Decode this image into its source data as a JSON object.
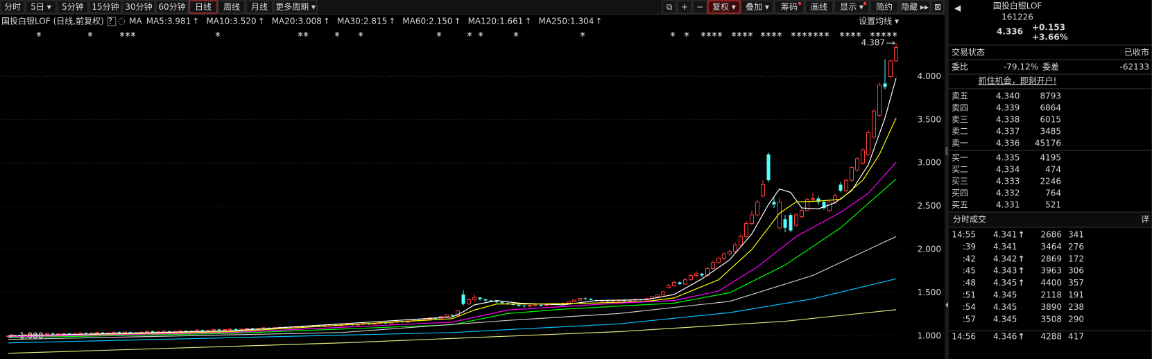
{
  "toolbar": {
    "periods": [
      "分时",
      "5日 ▾",
      "5分钟",
      "15分钟",
      "30分钟",
      "60分钟",
      "日线",
      "周线",
      "月线",
      "更多周期 ▾"
    ],
    "active_period": 6,
    "tools": [
      "⧉",
      "+",
      "−",
      "复权 ▾",
      "叠加 ▾",
      "筹码",
      "画线",
      "显示 ▾",
      "简约",
      "隐藏 ▸▸",
      "⊠"
    ],
    "active_tool": 3,
    "dot_tools": [
      5,
      7
    ]
  },
  "chart_data": {
    "type": "candlestick",
    "title": "国投白银LOF",
    "subtitle": "(日线,前复权)",
    "help": "?",
    "ma_label": "MA",
    "settings_label": "设置均线 ▾",
    "up_color": "#ff3c3c",
    "down_color": "#54ffff",
    "grid": true,
    "ylim": [
      0.75,
      4.5
    ],
    "yticks": [
      {
        "value": 1,
        "label": "1.000"
      },
      {
        "value": 1.5,
        "label": "1.500"
      },
      {
        "value": 2,
        "label": "2.000"
      },
      {
        "value": 2.5,
        "label": "2.500"
      },
      {
        "value": 3,
        "label": "3.000"
      },
      {
        "value": 3.5,
        "label": "3.500"
      },
      {
        "value": 4,
        "label": "4.000"
      }
    ],
    "high_mark": 4.387,
    "low_mark": {
      "value": 1,
      "label": "1.000"
    },
    "ohlc": [
      [
        1.0,
        1.01,
        1.0,
        1.0
      ],
      [
        1.0,
        1.015,
        1.0,
        1.01
      ],
      [
        1.01,
        1.015,
        1.0,
        1.005
      ],
      [
        1.005,
        1.02,
        1.0,
        1.015
      ],
      [
        1.015,
        1.025,
        1.01,
        1.02
      ],
      [
        1.02,
        1.025,
        1.005,
        1.01
      ],
      [
        1.01,
        1.025,
        1.005,
        1.02
      ],
      [
        1.02,
        1.035,
        1.015,
        1.03
      ],
      [
        1.03,
        1.035,
        1.015,
        1.02
      ],
      [
        1.02,
        1.03,
        1.015,
        1.025
      ],
      [
        1.025,
        1.035,
        1.02,
        1.03
      ],
      [
        1.03,
        1.035,
        1.015,
        1.02
      ],
      [
        1.02,
        1.035,
        1.015,
        1.03
      ],
      [
        1.03,
        1.04,
        1.025,
        1.035
      ],
      [
        1.035,
        1.04,
        1.02,
        1.025
      ],
      [
        1.025,
        1.04,
        1.02,
        1.035
      ],
      [
        1.035,
        1.045,
        1.03,
        1.04
      ],
      [
        1.04,
        1.045,
        1.025,
        1.03
      ],
      [
        1.03,
        1.04,
        1.025,
        1.035
      ],
      [
        1.035,
        1.05,
        1.03,
        1.045
      ],
      [
        1.045,
        1.05,
        1.03,
        1.035
      ],
      [
        1.035,
        1.05,
        1.03,
        1.045
      ],
      [
        1.045,
        1.05,
        1.035,
        1.04
      ],
      [
        1.04,
        1.045,
        1.03,
        1.035
      ],
      [
        1.035,
        1.05,
        1.03,
        1.045
      ],
      [
        1.045,
        1.06,
        1.04,
        1.055
      ],
      [
        1.055,
        1.06,
        1.04,
        1.045
      ],
      [
        1.045,
        1.055,
        1.04,
        1.05
      ],
      [
        1.05,
        1.06,
        1.045,
        1.055
      ],
      [
        1.055,
        1.06,
        1.04,
        1.045
      ],
      [
        1.045,
        1.06,
        1.04,
        1.055
      ],
      [
        1.055,
        1.065,
        1.05,
        1.06
      ],
      [
        1.06,
        1.065,
        1.045,
        1.05
      ],
      [
        1.05,
        1.065,
        1.045,
        1.06
      ],
      [
        1.06,
        1.075,
        1.055,
        1.07
      ],
      [
        1.07,
        1.075,
        1.055,
        1.06
      ],
      [
        1.06,
        1.07,
        1.055,
        1.065
      ],
      [
        1.065,
        1.08,
        1.06,
        1.075
      ],
      [
        1.075,
        1.08,
        1.06,
        1.065
      ],
      [
        1.065,
        1.08,
        1.06,
        1.075
      ],
      [
        1.075,
        1.085,
        1.07,
        1.08
      ],
      [
        1.08,
        1.085,
        1.065,
        1.07
      ],
      [
        1.07,
        1.085,
        1.065,
        1.08
      ],
      [
        1.08,
        1.095,
        1.075,
        1.09
      ],
      [
        1.09,
        1.095,
        1.075,
        1.08
      ],
      [
        1.08,
        1.09,
        1.075,
        1.085
      ],
      [
        1.085,
        1.1,
        1.08,
        1.095
      ],
      [
        1.095,
        1.1,
        1.08,
        1.085
      ],
      [
        1.085,
        1.1,
        1.08,
        1.095
      ],
      [
        1.095,
        1.105,
        1.09,
        1.1
      ],
      [
        1.1,
        1.11,
        1.09,
        1.095
      ],
      [
        1.095,
        1.11,
        1.09,
        1.105
      ],
      [
        1.105,
        1.115,
        1.1,
        1.11
      ],
      [
        1.11,
        1.12,
        1.1,
        1.105
      ],
      [
        1.105,
        1.12,
        1.1,
        1.115
      ],
      [
        1.115,
        1.125,
        1.11,
        1.12
      ],
      [
        1.12,
        1.125,
        1.105,
        1.11
      ],
      [
        1.11,
        1.125,
        1.105,
        1.12
      ],
      [
        1.12,
        1.135,
        1.115,
        1.13
      ],
      [
        1.13,
        1.135,
        1.115,
        1.12
      ],
      [
        1.12,
        1.135,
        1.115,
        1.13
      ],
      [
        1.13,
        1.14,
        1.125,
        1.135
      ],
      [
        1.135,
        1.14,
        1.12,
        1.125
      ],
      [
        1.125,
        1.14,
        1.12,
        1.135
      ],
      [
        1.135,
        1.15,
        1.13,
        1.145
      ],
      [
        1.145,
        1.15,
        1.13,
        1.135
      ],
      [
        1.135,
        1.15,
        1.13,
        1.145
      ],
      [
        1.145,
        1.16,
        1.14,
        1.155
      ],
      [
        1.155,
        1.16,
        1.14,
        1.145
      ],
      [
        1.145,
        1.165,
        1.14,
        1.16
      ],
      [
        1.16,
        1.175,
        1.155,
        1.17
      ],
      [
        1.17,
        1.175,
        1.155,
        1.16
      ],
      [
        1.16,
        1.18,
        1.155,
        1.175
      ],
      [
        1.175,
        1.19,
        1.17,
        1.185
      ],
      [
        1.185,
        1.19,
        1.17,
        1.18
      ],
      [
        1.18,
        1.2,
        1.175,
        1.195
      ],
      [
        1.195,
        1.215,
        1.19,
        1.21
      ],
      [
        1.21,
        1.215,
        1.19,
        1.2
      ],
      [
        1.2,
        1.23,
        1.195,
        1.225
      ],
      [
        1.225,
        1.25,
        1.22,
        1.245
      ],
      [
        1.245,
        1.25,
        1.225,
        1.235
      ],
      [
        1.235,
        1.3,
        1.23,
        1.29
      ],
      [
        1.48,
        1.53,
        1.35,
        1.37
      ],
      [
        1.37,
        1.43,
        1.36,
        1.42
      ],
      [
        1.42,
        1.48,
        1.4,
        1.445
      ],
      [
        1.445,
        1.45,
        1.41,
        1.425
      ],
      [
        1.425,
        1.43,
        1.4,
        1.41
      ],
      [
        1.41,
        1.42,
        1.39,
        1.4
      ],
      [
        1.4,
        1.41,
        1.38,
        1.39
      ],
      [
        1.39,
        1.4,
        1.37,
        1.38
      ],
      [
        1.38,
        1.39,
        1.36,
        1.37
      ],
      [
        1.37,
        1.38,
        1.35,
        1.36
      ],
      [
        1.36,
        1.37,
        1.34,
        1.35
      ],
      [
        1.35,
        1.36,
        1.33,
        1.345
      ],
      [
        1.345,
        1.36,
        1.335,
        1.355
      ],
      [
        1.355,
        1.37,
        1.345,
        1.36
      ],
      [
        1.36,
        1.37,
        1.34,
        1.35
      ],
      [
        1.35,
        1.365,
        1.345,
        1.36
      ],
      [
        1.36,
        1.375,
        1.355,
        1.37
      ],
      [
        1.37,
        1.38,
        1.355,
        1.365
      ],
      [
        1.365,
        1.385,
        1.36,
        1.38
      ],
      [
        1.38,
        1.4,
        1.375,
        1.395
      ],
      [
        1.395,
        1.42,
        1.39,
        1.415
      ],
      [
        1.415,
        1.44,
        1.41,
        1.435
      ],
      [
        1.435,
        1.45,
        1.42,
        1.425
      ],
      [
        1.425,
        1.44,
        1.41,
        1.415
      ],
      [
        1.415,
        1.425,
        1.4,
        1.405
      ],
      [
        1.405,
        1.42,
        1.395,
        1.41
      ],
      [
        1.41,
        1.42,
        1.395,
        1.4
      ],
      [
        1.4,
        1.415,
        1.395,
        1.41
      ],
      [
        1.41,
        1.425,
        1.405,
        1.415
      ],
      [
        1.415,
        1.42,
        1.4,
        1.405
      ],
      [
        1.405,
        1.42,
        1.4,
        1.415
      ],
      [
        1.415,
        1.43,
        1.41,
        1.425
      ],
      [
        1.425,
        1.43,
        1.41,
        1.415
      ],
      [
        1.415,
        1.44,
        1.41,
        1.435
      ],
      [
        1.435,
        1.46,
        1.43,
        1.455
      ],
      [
        1.455,
        1.48,
        1.45,
        1.475
      ],
      [
        1.475,
        1.52,
        1.47,
        1.51
      ],
      [
        1.56,
        1.6,
        1.55,
        1.58
      ],
      [
        1.58,
        1.64,
        1.57,
        1.62
      ],
      [
        1.62,
        1.63,
        1.59,
        1.6
      ],
      [
        1.6,
        1.67,
        1.59,
        1.65
      ],
      [
        1.65,
        1.72,
        1.64,
        1.7
      ],
      [
        1.7,
        1.75,
        1.68,
        1.72
      ],
      [
        1.72,
        1.73,
        1.68,
        1.7
      ],
      [
        1.7,
        1.8,
        1.69,
        1.78
      ],
      [
        1.78,
        1.87,
        1.77,
        1.85
      ],
      [
        1.85,
        1.92,
        1.84,
        1.9
      ],
      [
        1.9,
        1.97,
        1.88,
        1.95
      ],
      [
        1.95,
        2.0,
        1.93,
        1.98
      ],
      [
        1.98,
        2.08,
        1.96,
        2.05
      ],
      [
        2.05,
        2.18,
        2.03,
        2.15
      ],
      [
        2.15,
        2.33,
        2.13,
        2.3
      ],
      [
        2.3,
        2.45,
        2.28,
        2.4
      ],
      [
        2.4,
        2.58,
        2.38,
        2.55
      ],
      [
        2.62,
        2.8,
        2.6,
        2.75
      ],
      [
        3.1,
        3.12,
        2.78,
        2.8
      ],
      [
        2.55,
        2.6,
        2.48,
        2.52
      ],
      [
        2.25,
        2.6,
        2.22,
        2.55
      ],
      [
        2.35,
        2.4,
        2.2,
        2.25
      ],
      [
        2.4,
        2.42,
        2.2,
        2.22
      ],
      [
        2.28,
        2.42,
        2.26,
        2.4
      ],
      [
        2.38,
        2.48,
        2.36,
        2.45
      ],
      [
        2.45,
        2.6,
        2.44,
        2.58
      ],
      [
        2.58,
        2.66,
        2.55,
        2.59
      ],
      [
        2.59,
        2.62,
        2.52,
        2.55
      ],
      [
        2.55,
        2.57,
        2.46,
        2.48
      ],
      [
        2.45,
        2.57,
        2.43,
        2.55
      ],
      [
        2.55,
        2.65,
        2.53,
        2.62
      ],
      [
        2.75,
        2.78,
        2.66,
        2.68
      ],
      [
        2.68,
        2.82,
        2.66,
        2.8
      ],
      [
        2.8,
        2.97,
        2.78,
        2.95
      ],
      [
        2.92,
        3.07,
        2.9,
        3.05
      ],
      [
        3.0,
        3.17,
        2.98,
        3.15
      ],
      [
        3.1,
        3.38,
        3.08,
        3.35
      ],
      [
        3.3,
        3.63,
        3.28,
        3.6
      ],
      [
        3.55,
        3.93,
        3.53,
        3.9
      ],
      [
        3.92,
        4.2,
        3.85,
        3.88
      ],
      [
        4.0,
        4.2,
        3.98,
        4.18
      ],
      [
        4.18,
        4.387,
        4.17,
        4.336
      ]
    ],
    "series": [
      {
        "name": "MA5:3.981",
        "arrow": "↑",
        "color": "#ffffff",
        "x": [
          0,
          40,
          80,
          82,
          84,
          88,
          92,
          100,
          106,
          115,
          120,
          125,
          130,
          134,
          137,
          139,
          141,
          143,
          146,
          149,
          152,
          155,
          158,
          160
        ],
        "values": [
          1.0,
          1.06,
          1.22,
          1.28,
          1.36,
          1.41,
          1.38,
          1.36,
          1.41,
          1.42,
          1.48,
          1.66,
          1.88,
          2.18,
          2.52,
          2.7,
          2.66,
          2.48,
          2.47,
          2.54,
          2.68,
          2.98,
          3.52,
          3.981
        ]
      },
      {
        "name": "MA10:3.520",
        "arrow": "↑",
        "color": "#ffff00",
        "x": [
          0,
          40,
          80,
          84,
          88,
          95,
          105,
          115,
          120,
          128,
          134,
          139,
          142,
          146,
          150,
          154,
          157,
          160
        ],
        "values": [
          0.99,
          1.05,
          1.2,
          1.3,
          1.37,
          1.37,
          1.38,
          1.4,
          1.44,
          1.65,
          2.0,
          2.42,
          2.55,
          2.56,
          2.58,
          2.8,
          3.1,
          3.52
        ]
      },
      {
        "name": "MA20:3.008",
        "arrow": "↑",
        "color": "#ff00ff",
        "x": [
          0,
          40,
          80,
          90,
          100,
          110,
          120,
          128,
          135,
          142,
          150,
          155,
          160
        ],
        "values": [
          0.99,
          1.04,
          1.16,
          1.3,
          1.34,
          1.38,
          1.41,
          1.52,
          1.8,
          2.15,
          2.43,
          2.65,
          3.008
        ]
      },
      {
        "name": "MA30:2.815",
        "arrow": "↑",
        "color": "#00ff00",
        "x": [
          0,
          40,
          80,
          90,
          100,
          120,
          130,
          140,
          150,
          160
        ],
        "values": [
          0.98,
          1.03,
          1.13,
          1.26,
          1.31,
          1.38,
          1.5,
          1.82,
          2.25,
          2.815
        ]
      },
      {
        "name": "MA60:2.150",
        "arrow": "↑",
        "color": "#c8c8c8",
        "x": [
          0,
          60,
          90,
          110,
          130,
          145,
          160
        ],
        "values": [
          0.96,
          1.04,
          1.18,
          1.26,
          1.4,
          1.7,
          2.15
        ]
      },
      {
        "name": "MA120:1.661",
        "arrow": "↑",
        "color": "#00bfff",
        "x": [
          0,
          80,
          110,
          130,
          145,
          160
        ],
        "values": [
          0.92,
          1.04,
          1.14,
          1.27,
          1.43,
          1.661
        ]
      },
      {
        "name": "MA250:1.304",
        "arrow": "↑",
        "color": "#e6e67a",
        "x": [
          0,
          60,
          110,
          140,
          160
        ],
        "values": [
          0.8,
          0.92,
          1.05,
          1.17,
          1.304
        ]
      }
    ]
  },
  "quote": {
    "nav_prev": "◀",
    "name": "国投白银LOF",
    "code": "161226",
    "price": "4.336",
    "change": "+0.153",
    "change_pct": "+3.66%",
    "status_label": "交易状态",
    "status": "已收市",
    "ratio_label": "委比",
    "ratio": "-79.12%",
    "diff_label": "委差",
    "diff": "-62133",
    "banner": "抓住机会，即刻开户!"
  },
  "order_book": {
    "asks": [
      {
        "label": "卖五",
        "price": "4.340",
        "volume": "8793"
      },
      {
        "label": "卖四",
        "price": "4.339",
        "volume": "6864"
      },
      {
        "label": "卖三",
        "price": "4.338",
        "volume": "6015"
      },
      {
        "label": "卖二",
        "price": "4.337",
        "volume": "3485"
      },
      {
        "label": "卖一",
        "price": "4.336",
        "volume": "45176"
      }
    ],
    "bids": [
      {
        "label": "买一",
        "price": "4.335",
        "volume": "4195"
      },
      {
        "label": "买二",
        "price": "4.334",
        "volume": "474"
      },
      {
        "label": "买三",
        "price": "4.333",
        "volume": "2246"
      },
      {
        "label": "买四",
        "price": "4.332",
        "volume": "764"
      },
      {
        "label": "买五",
        "price": "4.331",
        "volume": "521"
      }
    ]
  },
  "trades": {
    "title": "分时成交",
    "detail": "详",
    "rows": [
      {
        "time": "14:55",
        "price": "4.341",
        "arrow": "↑",
        "volume": "2686",
        "count": "341",
        "volume_color": "#ff3c3c"
      },
      {
        "time": ":39",
        "price": "4.341",
        "volume": "3464",
        "count": "276",
        "volume_color": "#ff3c3c"
      },
      {
        "time": ":42",
        "price": "4.342",
        "arrow": "↑",
        "volume": "2869",
        "count": "172",
        "volume_color": "#ff3c3c"
      },
      {
        "time": ":45",
        "price": "4.343",
        "arrow": "↑",
        "volume": "3963",
        "count": "306",
        "volume_color": "#ff3c3c"
      },
      {
        "time": ":48",
        "price": "4.345",
        "arrow": "↑",
        "volume": "4400",
        "count": "357",
        "volume_color": "#ff3c3c"
      },
      {
        "time": ":51",
        "price": "4.345",
        "volume": "2118",
        "count": "191",
        "volume_color": "#ff3c3c"
      },
      {
        "time": ":54",
        "price": "4.345",
        "volume": "3890",
        "count": "238",
        "volume_color": "#ff3c3c"
      },
      {
        "time": ":57",
        "price": "4.345",
        "volume": "3508",
        "count": "290",
        "volume_color": "#00e600"
      },
      {
        "time": "14:56",
        "price": "4.346",
        "arrow": "↑",
        "volume": "4288",
        "count": "417",
        "volume_color": "#ff3c3c"
      }
    ]
  }
}
